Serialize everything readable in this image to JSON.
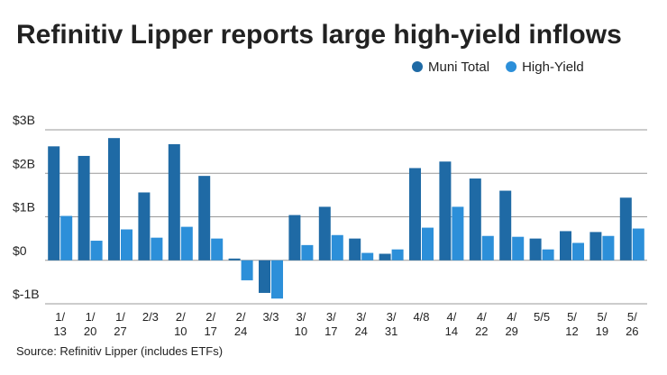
{
  "chart_data": {
    "type": "bar",
    "title": "Refinitiv Lipper reports large high-yield inflows",
    "source": "Source: Refinitiv Lipper (includes ETFs)",
    "categories": [
      "1/\n13",
      "1/\n20",
      "1/\n27",
      "2/3",
      "2/\n10",
      "2/\n17",
      "2/\n24",
      "3/3",
      "3/\n10",
      "3/\n17",
      "3/\n24",
      "3/\n31",
      "4/8",
      "4/\n14",
      "4/\n22",
      "4/\n29",
      "5/5",
      "5/\n12",
      "5/\n19",
      "5/\n26"
    ],
    "series": [
      {
        "name": "Muni Total",
        "color": "#1f6aa5",
        "values": [
          2.62,
          2.4,
          2.81,
          1.56,
          2.67,
          1.94,
          0.04,
          -0.75,
          1.04,
          1.23,
          0.5,
          0.15,
          2.12,
          2.27,
          1.88,
          1.6,
          0.5,
          0.67,
          0.65,
          1.44
        ]
      },
      {
        "name": "High-Yield",
        "color": "#2c8fd9",
        "values": [
          1.02,
          0.45,
          0.71,
          0.52,
          0.77,
          0.5,
          -0.46,
          -0.88,
          0.35,
          0.58,
          0.17,
          0.25,
          0.75,
          1.23,
          0.56,
          0.54,
          0.25,
          0.4,
          0.56,
          0.73
        ]
      }
    ],
    "ylim": [
      -1,
      3
    ],
    "yticks": [
      {
        "value": -1,
        "label": "$-1B"
      },
      {
        "value": 0,
        "label": "$0"
      },
      {
        "value": 1,
        "label": "$1B"
      },
      {
        "value": 2,
        "label": "$2B"
      },
      {
        "value": 3,
        "label": "$3B"
      }
    ],
    "grid": true,
    "legend": "top-right"
  }
}
